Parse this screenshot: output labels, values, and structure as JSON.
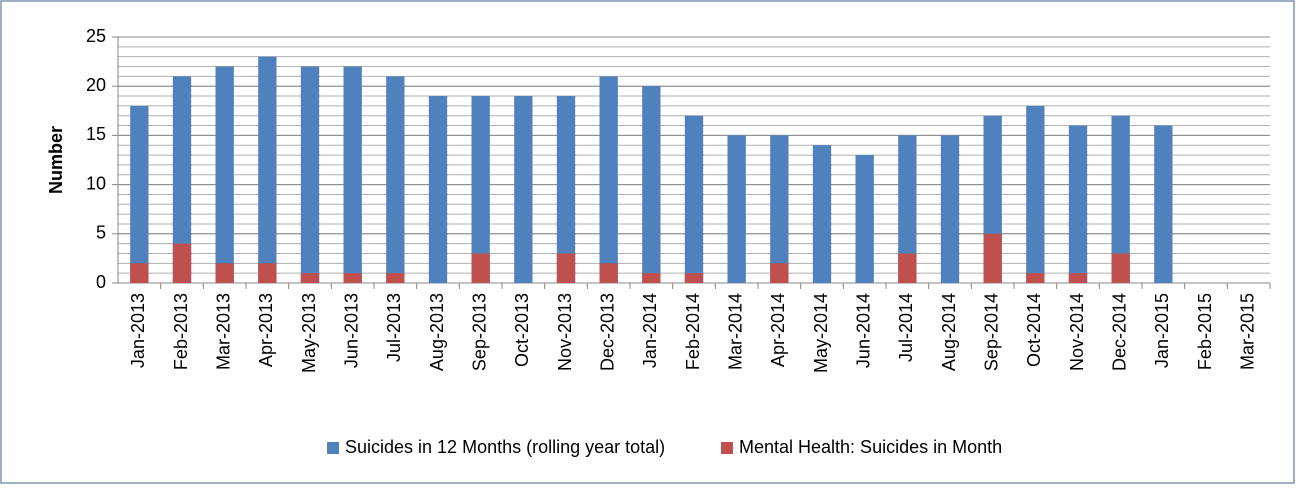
{
  "chart_data": {
    "type": "bar",
    "overlap": true,
    "y_label": "Number",
    "categories": [
      "Jan-2013",
      "Feb-2013",
      "Mar-2013",
      "Apr-2013",
      "May-2013",
      "Jun-2013",
      "Jul-2013",
      "Aug-2013",
      "Sep-2013",
      "Oct-2013",
      "Nov-2013",
      "Dec-2013",
      "Jan-2014",
      "Feb-2014",
      "Mar-2014",
      "Apr-2014",
      "May-2014",
      "Jun-2014",
      "Jul-2014",
      "Aug-2014",
      "Sep-2014",
      "Oct-2014",
      "Nov-2014",
      "Dec-2014",
      "Jan-2015",
      "Feb-2015",
      "Mar-2015"
    ],
    "series": [
      {
        "name": "Suicides in 12 Months (rolling year total)",
        "color": "#4f81bd",
        "values": [
          18,
          21,
          22,
          23,
          22,
          22,
          21,
          19,
          19,
          19,
          19,
          21,
          20,
          17,
          15,
          15,
          14,
          13,
          15,
          15,
          17,
          18,
          16,
          17,
          16,
          null,
          null
        ]
      },
      {
        "name": "Mental Health: Suicides in Month",
        "color": "#c0504d",
        "values": [
          2,
          4,
          2,
          2,
          1,
          1,
          1,
          0,
          3,
          0,
          3,
          2,
          1,
          1,
          0,
          2,
          0,
          0,
          3,
          0,
          5,
          1,
          1,
          3,
          0,
          null,
          null
        ]
      }
    ],
    "ylim": [
      0,
      25
    ],
    "yticks": [
      0,
      5,
      10,
      15,
      20,
      25
    ],
    "grid": true,
    "minor_grid": true,
    "legend": "bottom"
  }
}
